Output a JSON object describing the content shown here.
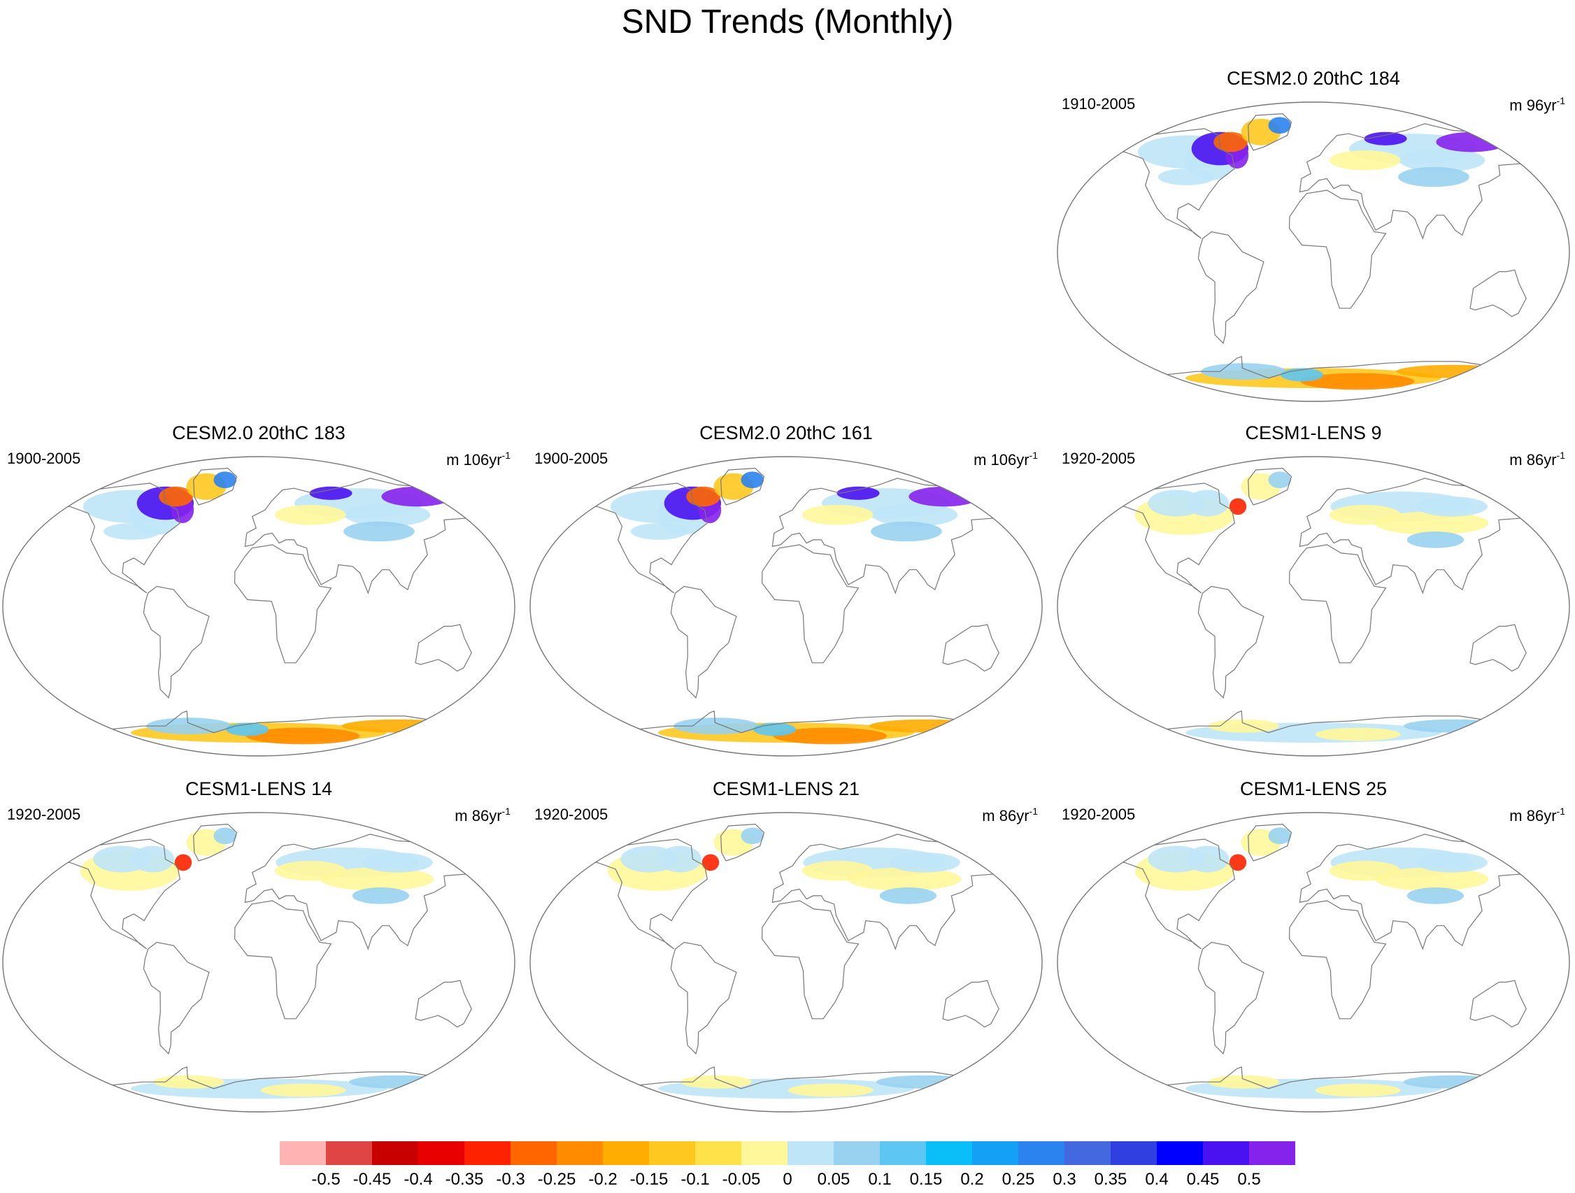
{
  "title": "SND Trends (Monthly)",
  "panels": [
    {
      "title": "CESM2.0 20thC 184",
      "period": "1910-2005",
      "units_prefix": "m 96yr",
      "units_exp": "-1",
      "pattern": "cesm2"
    },
    {
      "title": "CESM2.0 20thC 183",
      "period": "1900-2005",
      "units_prefix": "m 106yr",
      "units_exp": "-1",
      "pattern": "cesm2"
    },
    {
      "title": "CESM2.0 20thC 161",
      "period": "1900-2005",
      "units_prefix": "m 106yr",
      "units_exp": "-1",
      "pattern": "cesm2"
    },
    {
      "title": "CESM1-LENS 9",
      "period": "1920-2005",
      "units_prefix": "m 86yr",
      "units_exp": "-1",
      "pattern": "lens"
    },
    {
      "title": "CESM1-LENS 14",
      "period": "1920-2005",
      "units_prefix": "m 86yr",
      "units_exp": "-1",
      "pattern": "lens"
    },
    {
      "title": "CESM1-LENS 21",
      "period": "1920-2005",
      "units_prefix": "m 86yr",
      "units_exp": "-1",
      "pattern": "lens"
    },
    {
      "title": "CESM1-LENS 25",
      "period": "1920-2005",
      "units_prefix": "m 86yr",
      "units_exp": "-1",
      "pattern": "lens"
    }
  ],
  "colorbar": {
    "colors": [
      "#ffb3b3",
      "#e04545",
      "#c80000",
      "#e80000",
      "#ff2200",
      "#ff6600",
      "#ff8c00",
      "#ffad00",
      "#ffc820",
      "#ffe24a",
      "#fff79a",
      "#bfe6f8",
      "#98d2f0",
      "#5ec6f2",
      "#0abef8",
      "#14a0f5",
      "#2b83f0",
      "#4468e0",
      "#3040e0",
      "#0000ff",
      "#4a12f0",
      "#8522ec"
    ],
    "labels": [
      "-0.5",
      "-0.45",
      "-0.4",
      "-0.35",
      "-0.3",
      "-0.25",
      "-0.2",
      "-0.15",
      "-0.1",
      "-0.05",
      "0",
      "0.05",
      "0.1",
      "0.15",
      "0.2",
      "0.25",
      "0.3",
      "0.35",
      "0.4",
      "0.45",
      "0.5"
    ]
  }
}
